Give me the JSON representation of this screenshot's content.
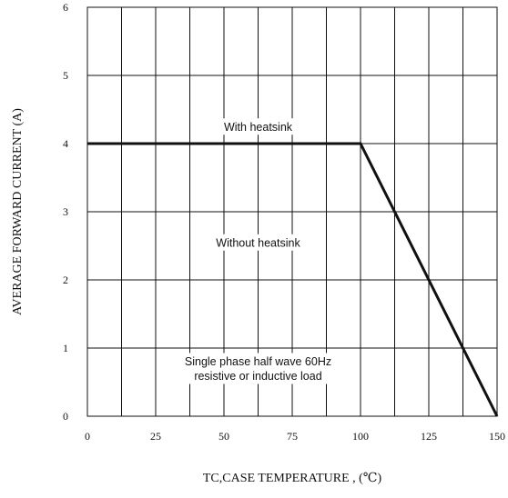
{
  "chart_data": {
    "type": "line",
    "xlabel": "TC,CASE TEMPERATURE , (℃)",
    "ylabel": "AVERAGE FORWARD CURRENT (A)",
    "xlim": [
      0,
      150
    ],
    "ylim": [
      0,
      6
    ],
    "x_ticks": [
      "0",
      "25",
      "50",
      "75",
      "100",
      "125",
      "150"
    ],
    "y_ticks": [
      "0",
      "1",
      "2",
      "3",
      "4",
      "5",
      "6"
    ],
    "grid": true,
    "series": [
      {
        "x": [
          0,
          100,
          150
        ],
        "y": [
          4,
          4,
          0
        ]
      }
    ],
    "annotations": [
      {
        "lines": [
          "With heatsink"
        ],
        "x": 62.5,
        "y": 4.25
      },
      {
        "lines": [
          "Without heatsink"
        ],
        "x": 62.5,
        "y": 2.55
      },
      {
        "lines": [
          "Single phase half wave 60Hz",
          "resistive or inductive load"
        ],
        "x": 62.5,
        "y": 0.7
      }
    ]
  }
}
